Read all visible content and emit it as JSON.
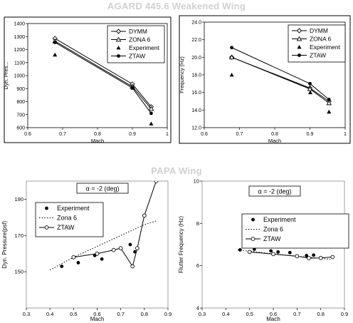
{
  "sections": {
    "top_title": "AGARD 445.6 Weakened Wing",
    "bottom_title": "PAPA Wing"
  },
  "chart_data": [
    {
      "id": "agard-pressure",
      "type": "line",
      "xlabel": "Mach",
      "ylabel": "Dyn. Pres...",
      "xlim": [
        0.6,
        1.0
      ],
      "ylim": [
        600,
        1400
      ],
      "xticks": [
        0.6,
        0.7,
        0.8,
        0.9,
        1
      ],
      "xtick_labels": [
        "0.6",
        "0.7",
        "0.8",
        "0.9",
        "1"
      ],
      "yticks": [
        600,
        700,
        800,
        900,
        1000,
        1100,
        1200,
        1300,
        1400
      ],
      "ytick_labels": [
        "600",
        "700",
        "800",
        "900",
        "1000",
        "1100",
        "1200",
        "1300",
        "1400"
      ],
      "grid": false,
      "legend_position": "top-right",
      "series": [
        {
          "name": "DYMM",
          "marker": "diamond-open",
          "line": "solid",
          "x": [
            0.678,
            0.9,
            0.954
          ],
          "y": [
            1285,
            935,
            760
          ]
        },
        {
          "name": "ZONA 6",
          "marker": "triangle-open",
          "line": "solid",
          "x": [
            0.678,
            0.9,
            0.954
          ],
          "y": [
            1265,
            915,
            745
          ]
        },
        {
          "name": "Experiment",
          "marker": "triangle-filled",
          "line": "none",
          "x": [
            0.678,
            0.901,
            0.954
          ],
          "y": [
            1160,
            905,
            630
          ]
        },
        {
          "name": "ZTAW",
          "marker": "circle-filled",
          "line": "solid",
          "x": [
            0.678,
            0.9,
            0.954
          ],
          "y": [
            1255,
            905,
            710
          ]
        }
      ]
    },
    {
      "id": "agard-frequency",
      "type": "line",
      "xlabel": "Mach",
      "ylabel": "Frequency (Hz)",
      "xlim": [
        0.6,
        1.0
      ],
      "ylim": [
        12,
        24
      ],
      "xticks": [
        0.6,
        0.7,
        0.8,
        0.9,
        1
      ],
      "xtick_labels": [
        "0.6",
        "0.7",
        "0.8",
        "0.9",
        "1"
      ],
      "yticks": [
        12,
        14,
        16,
        18,
        20,
        22,
        24
      ],
      "ytick_labels": [
        "12.0",
        "14.0",
        "16.0",
        "18.0",
        "20.0",
        "22.0",
        "24.0"
      ],
      "grid": false,
      "legend_position": "top-right",
      "series": [
        {
          "name": "DYMM",
          "marker": "diamond-open",
          "line": "solid",
          "x": [
            0.678,
            0.9,
            0.954
          ],
          "y": [
            20.0,
            16.5,
            15.0
          ]
        },
        {
          "name": "ZONA 6",
          "marker": "triangle-open",
          "line": "solid",
          "x": [
            0.678,
            0.9,
            0.954
          ],
          "y": [
            20.0,
            16.4,
            14.8
          ]
        },
        {
          "name": "Experiment",
          "marker": "triangle-filled",
          "line": "none",
          "x": [
            0.678,
            0.901,
            0.954
          ],
          "y": [
            18.0,
            16.0,
            13.8
          ]
        },
        {
          "name": "ZTAW",
          "marker": "circle-filled",
          "line": "solid",
          "x": [
            0.678,
            0.9,
            0.954
          ],
          "y": [
            21.1,
            17.0,
            15.2
          ]
        }
      ]
    },
    {
      "id": "papa-pressure",
      "type": "line",
      "xlabel": "Mach",
      "ylabel": "Dyn. Pressure(psf)",
      "annotation": "α = -2 (deg)",
      "xlim": [
        0.3,
        0.9
      ],
      "ylim": [
        130,
        200
      ],
      "xticks": [
        0.3,
        0.4,
        0.5,
        0.6,
        0.7,
        0.8,
        0.9
      ],
      "xtick_labels": [
        "0.3",
        "0.4",
        "0.5",
        "0.6",
        "0.7",
        "0.8",
        "0.9"
      ],
      "yticks": [
        150,
        170,
        190
      ],
      "ytick_labels": [
        "150",
        "170",
        "190"
      ],
      "grid": false,
      "legend_position": "upper-left",
      "series": [
        {
          "name": "Experiment",
          "marker": "circle-filled",
          "line": "none",
          "x": [
            0.45,
            0.52,
            0.59,
            0.62,
            0.74,
            0.76
          ],
          "y": [
            153,
            155,
            159,
            157,
            165,
            161
          ]
        },
        {
          "name": "Zona 6",
          "marker": "none",
          "line": "dotted",
          "x": [
            0.4,
            0.5,
            0.6,
            0.7,
            0.8,
            0.85
          ],
          "y": [
            151,
            158,
            164,
            170,
            176,
            178
          ]
        },
        {
          "name": "ZTAW",
          "marker": "circle-open",
          "line": "solid",
          "x": [
            0.5,
            0.6,
            0.67,
            0.7,
            0.75,
            0.77,
            0.8,
            0.85
          ],
          "y": [
            158,
            160,
            162,
            163,
            153,
            163,
            181,
            200
          ]
        }
      ]
    },
    {
      "id": "papa-frequency",
      "type": "line",
      "xlabel": "Mach",
      "ylabel": "Flutter Frequency (Hz)",
      "annotation": "α = -2 (deg)",
      "xlim": [
        0.3,
        0.9
      ],
      "ylim": [
        4,
        10
      ],
      "xticks": [
        0.3,
        0.4,
        0.5,
        0.6,
        0.7,
        0.8,
        0.9
      ],
      "xtick_labels": [
        "0.3",
        "0.4",
        "0.5",
        "0.6",
        "0.7",
        "0.8",
        "0.9"
      ],
      "yticks": [
        4,
        6,
        8,
        10
      ],
      "ytick_labels": [
        "4",
        "6",
        "8",
        "10"
      ],
      "grid": false,
      "legend_position": "upper-right",
      "series": [
        {
          "name": "Experiment",
          "marker": "circle-filled",
          "line": "none",
          "x": [
            0.46,
            0.52,
            0.59,
            0.62,
            0.67,
            0.74,
            0.77
          ],
          "y": [
            6.75,
            6.78,
            6.7,
            6.65,
            6.62,
            6.48,
            6.5
          ]
        },
        {
          "name": "Zona 6",
          "marker": "none",
          "line": "dotted",
          "x": [
            0.45,
            0.55,
            0.65,
            0.75,
            0.84
          ],
          "y": [
            6.75,
            6.62,
            6.5,
            6.4,
            6.3
          ]
        },
        {
          "name": "ZTAW",
          "marker": "circle-open",
          "line": "solid",
          "x": [
            0.5,
            0.6,
            0.7,
            0.75,
            0.8,
            0.85
          ],
          "y": [
            6.65,
            6.55,
            6.45,
            6.36,
            6.37,
            6.41
          ]
        }
      ]
    }
  ]
}
